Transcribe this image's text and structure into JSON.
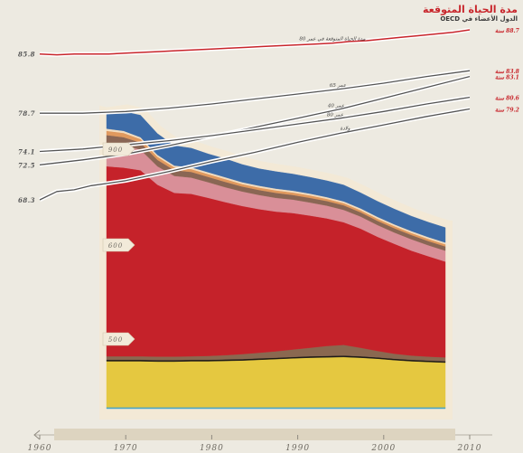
{
  "header": {
    "title": "مدة الحياة المتوقعة",
    "subtitle": "الدول الأعضاء في OECD"
  },
  "colors": {
    "background": "#edeae1",
    "top_line": "#c8252b",
    "life_lines": "#555555",
    "label_red": "#c8252b"
  },
  "chart_data": [
    {
      "type": "line",
      "title": "مدة الحياة المتوقعة",
      "subtitle": "الدول الأعضاء في OECD",
      "xlim": [
        1960,
        2010
      ],
      "x_ticks": [
        "1960",
        "1970",
        "1980",
        "1990",
        "2000",
        "2010"
      ],
      "series": [
        {
          "name": "مدة الحياة المتوقعة في عمر 80",
          "color": "#c8252b",
          "start_label": "85.8",
          "end_label": "88.7 سنة",
          "x": [
            1960,
            1962,
            1964,
            1966,
            1968,
            1970,
            1972,
            1974,
            1976,
            1978,
            1980,
            1982,
            1984,
            1986,
            1988,
            1990,
            1992,
            1994,
            1996,
            1998,
            2000,
            2002,
            2004,
            2006,
            2008,
            2010
          ],
          "y": [
            85.8,
            85.7,
            85.8,
            85.8,
            85.8,
            85.9,
            86.0,
            86.1,
            86.2,
            86.3,
            86.4,
            86.5,
            86.6,
            86.7,
            86.8,
            86.9,
            87.0,
            87.1,
            87.3,
            87.4,
            87.6,
            87.8,
            88.0,
            88.2,
            88.4,
            88.7
          ]
        },
        {
          "name": "عمر 65",
          "color": "#555555",
          "start_label": "78.7",
          "end_label": "83.8 سنة",
          "x": [
            1960,
            1965,
            1970,
            1975,
            1980,
            1985,
            1990,
            1995,
            2000,
            2005,
            2010
          ],
          "y": [
            78.7,
            78.7,
            78.9,
            79.3,
            79.8,
            80.4,
            81.0,
            81.6,
            82.3,
            83.1,
            83.8
          ]
        },
        {
          "name": "عمر 40",
          "color": "#555555",
          "start_label": "72.5",
          "end_label": "83.1 سنة",
          "x": [
            1960,
            1965,
            1970,
            1975,
            1980,
            1985,
            1990,
            1995,
            2000,
            2005,
            2010
          ],
          "y": [
            72.5,
            73.1,
            73.8,
            74.8,
            75.9,
            77.0,
            78.1,
            79.2,
            80.5,
            81.8,
            83.1
          ]
        },
        {
          "name": "عمر 80",
          "color": "#555555",
          "start_label": "74.1",
          "end_label": "80.6 سنة",
          "x": [
            1960,
            1965,
            1970,
            1975,
            1980,
            1985,
            1990,
            1995,
            2000,
            2005,
            2010
          ],
          "y": [
            74.1,
            74.4,
            74.9,
            75.4,
            76.0,
            76.7,
            77.4,
            78.1,
            78.9,
            79.8,
            80.6
          ]
        },
        {
          "name": "ولادة",
          "color": "#555555",
          "start_label": "68.3",
          "end_label": "79.2 سنة",
          "x": [
            1960,
            1962,
            1964,
            1966,
            1968,
            1970,
            1975,
            1980,
            1985,
            1990,
            1995,
            2000,
            2005,
            2010
          ],
          "y": [
            68.3,
            69.3,
            69.5,
            70.0,
            70.3,
            70.6,
            71.7,
            72.9,
            74.0,
            75.2,
            76.3,
            77.3,
            78.3,
            79.2
          ]
        }
      ]
    },
    {
      "type": "area",
      "y_ticks": [
        "900",
        "600",
        "500"
      ],
      "x": [
        1968,
        1970,
        1972,
        1974,
        1976,
        1978,
        1980,
        1982,
        1984,
        1986,
        1988,
        1990,
        1992,
        1994,
        1996,
        1998,
        2000,
        2002,
        2004,
        2006,
        2008
      ],
      "series": [
        {
          "color": "#4ca6c6",
          "values": [
            4,
            4,
            4,
            4,
            4,
            4,
            4,
            4,
            4,
            4,
            4,
            4,
            4,
            4,
            4,
            4,
            4,
            4,
            4,
            4,
            4
          ]
        },
        {
          "color": "#e5c840",
          "values": [
            130,
            130,
            130,
            129,
            129,
            130,
            130,
            131,
            132,
            134,
            136,
            138,
            140,
            141,
            142,
            140,
            137,
            133,
            130,
            128,
            126
          ]
        },
        {
          "color": "#1e1a17",
          "values": [
            4,
            4,
            4,
            4,
            4,
            4,
            4,
            4,
            4,
            4,
            4,
            4,
            4,
            4,
            4,
            4,
            4,
            4,
            4,
            4,
            4
          ]
        },
        {
          "color": "#8a6850",
          "values": [
            10,
            10,
            10,
            10,
            10,
            10,
            11,
            12,
            14,
            16,
            18,
            21,
            24,
            28,
            30,
            24,
            18,
            14,
            12,
            11,
            11
          ]
        },
        {
          "color": "#c5222a",
          "values": [
            536,
            532,
            525,
            485,
            462,
            458,
            446,
            432,
            418,
            405,
            394,
            385,
            373,
            360,
            346,
            336,
            322,
            310,
            296,
            283,
            270
          ]
        },
        {
          "color": "#d98f98",
          "values": [
            66,
            64,
            58,
            52,
            48,
            46,
            44,
            42,
            41,
            40,
            39,
            38,
            37,
            36,
            35,
            34,
            33,
            32,
            32,
            31,
            31
          ]
        },
        {
          "color": "#8a6654",
          "values": [
            22,
            22,
            20,
            18,
            16,
            16,
            15,
            15,
            14,
            14,
            14,
            13,
            13,
            13,
            13,
            12,
            12,
            12,
            12,
            12,
            12
          ]
        },
        {
          "color": "#e0995e",
          "values": [
            12,
            12,
            10,
            9,
            8,
            8,
            8,
            8,
            7,
            7,
            7,
            7,
            7,
            6,
            6,
            6,
            6,
            6,
            6,
            6,
            6
          ]
        },
        {
          "color": "#f2ddc0",
          "values": [
            6,
            6,
            5,
            5,
            5,
            5,
            5,
            5,
            5,
            5,
            5,
            5,
            5,
            5,
            5,
            5,
            5,
            5,
            5,
            5,
            5
          ]
        },
        {
          "color": "#3d6ca8",
          "values": [
            40,
            54,
            62,
            60,
            56,
            54,
            52,
            52,
            50,
            48,
            48,
            47,
            46,
            46,
            46,
            44,
            44,
            43,
            42,
            42,
            42
          ]
        }
      ]
    }
  ]
}
